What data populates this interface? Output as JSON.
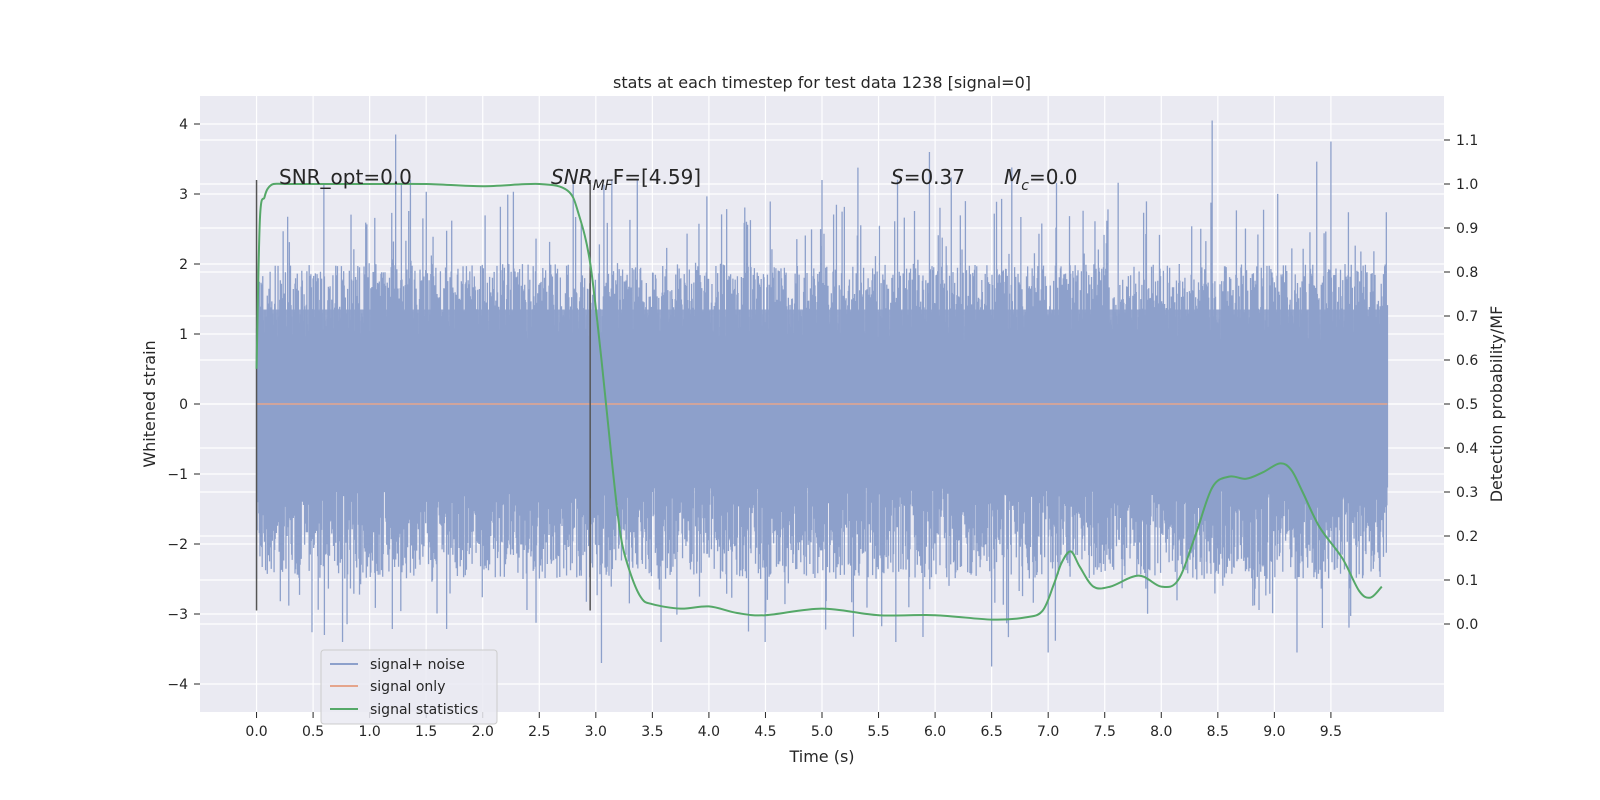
{
  "chart_data": {
    "type": "line",
    "title": "stats at each timestep for test data 1238 [signal=0]",
    "xlabel": "Time (s)",
    "ylabel": "Whitened strain",
    "ylabel_right": "Detection probability/MF",
    "xlim": [
      -0.5,
      10.5
    ],
    "ylim_left": [
      -4.4,
      4.4
    ],
    "ylim_right": [
      -0.2,
      1.2
    ],
    "x_ticks": [
      "0.0",
      "0.5",
      "1.0",
      "1.5",
      "2.0",
      "2.5",
      "3.0",
      "3.5",
      "4.0",
      "4.5",
      "5.0",
      "5.5",
      "6.0",
      "6.5",
      "7.0",
      "7.5",
      "8.0",
      "8.5",
      "9.0",
      "9.5"
    ],
    "y_ticks_left": [
      "4",
      "3",
      "2",
      "1",
      "0",
      "−1",
      "−2",
      "−3",
      "−4"
    ],
    "y_ticks_right": [
      "1.1",
      "1.0",
      "0.9",
      "0.8",
      "0.7",
      "0.6",
      "0.5",
      "0.4",
      "0.3",
      "0.2",
      "0.1",
      "0.0"
    ],
    "grid": true,
    "legend_placement": "lower-left",
    "series": [
      {
        "name": "signal+ noise",
        "axis": "left",
        "color": "#8da0cb",
        "style": "dense-noise",
        "x_range": [
          0.0,
          10.0
        ],
        "envelope": {
          "core_low": -1.2,
          "core_high": 1.35,
          "typical_low": -2.5,
          "typical_high": 2.0
        },
        "peaks": [
          {
            "x": 1.23,
            "y": 3.85
          },
          {
            "x": 2.8,
            "y": 3.2
          },
          {
            "x": 5.0,
            "y": 3.2
          },
          {
            "x": 8.45,
            "y": 4.05
          },
          {
            "x": 9.5,
            "y": 3.75
          },
          {
            "x": 5.95,
            "y": 3.6
          },
          {
            "x": 0.6,
            "y": -3.3
          },
          {
            "x": 3.05,
            "y": -3.7
          },
          {
            "x": 6.5,
            "y": -3.75
          },
          {
            "x": 9.2,
            "y": -3.55
          },
          {
            "x": 7.0,
            "y": -3.55
          },
          {
            "x": 4.35,
            "y": -3.25
          }
        ]
      },
      {
        "name": "signal only",
        "axis": "left",
        "color": "#e5a58c",
        "x": [
          0.0,
          10.0
        ],
        "y": [
          0.0,
          0.0
        ]
      },
      {
        "name": "signal statistics",
        "axis": "right",
        "color": "#55a868",
        "x": [
          0.0,
          0.03,
          0.07,
          0.1,
          0.15,
          0.25,
          0.5,
          1.0,
          1.5,
          2.0,
          2.5,
          2.75,
          2.85,
          2.95,
          3.05,
          3.15,
          3.22,
          3.3,
          3.4,
          3.5,
          3.75,
          4.0,
          4.25,
          4.5,
          5.0,
          5.5,
          6.0,
          6.5,
          6.8,
          6.95,
          7.05,
          7.12,
          7.2,
          7.28,
          7.4,
          7.55,
          7.8,
          8.0,
          8.15,
          8.3,
          8.45,
          8.6,
          8.75,
          8.9,
          9.05,
          9.15,
          9.25,
          9.4,
          9.6,
          9.75,
          9.85,
          9.95
        ],
        "y": [
          0.58,
          0.92,
          0.97,
          0.99,
          1.0,
          1.0,
          1.0,
          1.0,
          1.0,
          0.995,
          1.0,
          0.985,
          0.93,
          0.82,
          0.6,
          0.35,
          0.2,
          0.12,
          0.06,
          0.045,
          0.035,
          0.04,
          0.025,
          0.02,
          0.035,
          0.02,
          0.02,
          0.01,
          0.015,
          0.03,
          0.09,
          0.14,
          0.165,
          0.13,
          0.085,
          0.085,
          0.11,
          0.085,
          0.1,
          0.2,
          0.31,
          0.335,
          0.33,
          0.345,
          0.365,
          0.35,
          0.3,
          0.22,
          0.15,
          0.075,
          0.06,
          0.085
        ]
      }
    ],
    "vlines": [
      {
        "x": 0.0,
        "y_range": [
          -2.95,
          3.2
        ],
        "color": "#555555"
      },
      {
        "x": 2.95,
        "y_range": [
          -2.95,
          3.2
        ],
        "color": "#555555"
      }
    ],
    "annotations": [
      {
        "key": "snr_opt",
        "text": "SNR_opt=0.0"
      },
      {
        "key": "snr_mf",
        "text": "SNR",
        "sub": "MF",
        "rest": "F=[4.59]"
      },
      {
        "key": "s",
        "text": "S",
        "rest": "=0.37"
      },
      {
        "key": "mc",
        "text": "M",
        "sub": "c",
        "rest": "=0.0"
      }
    ]
  }
}
